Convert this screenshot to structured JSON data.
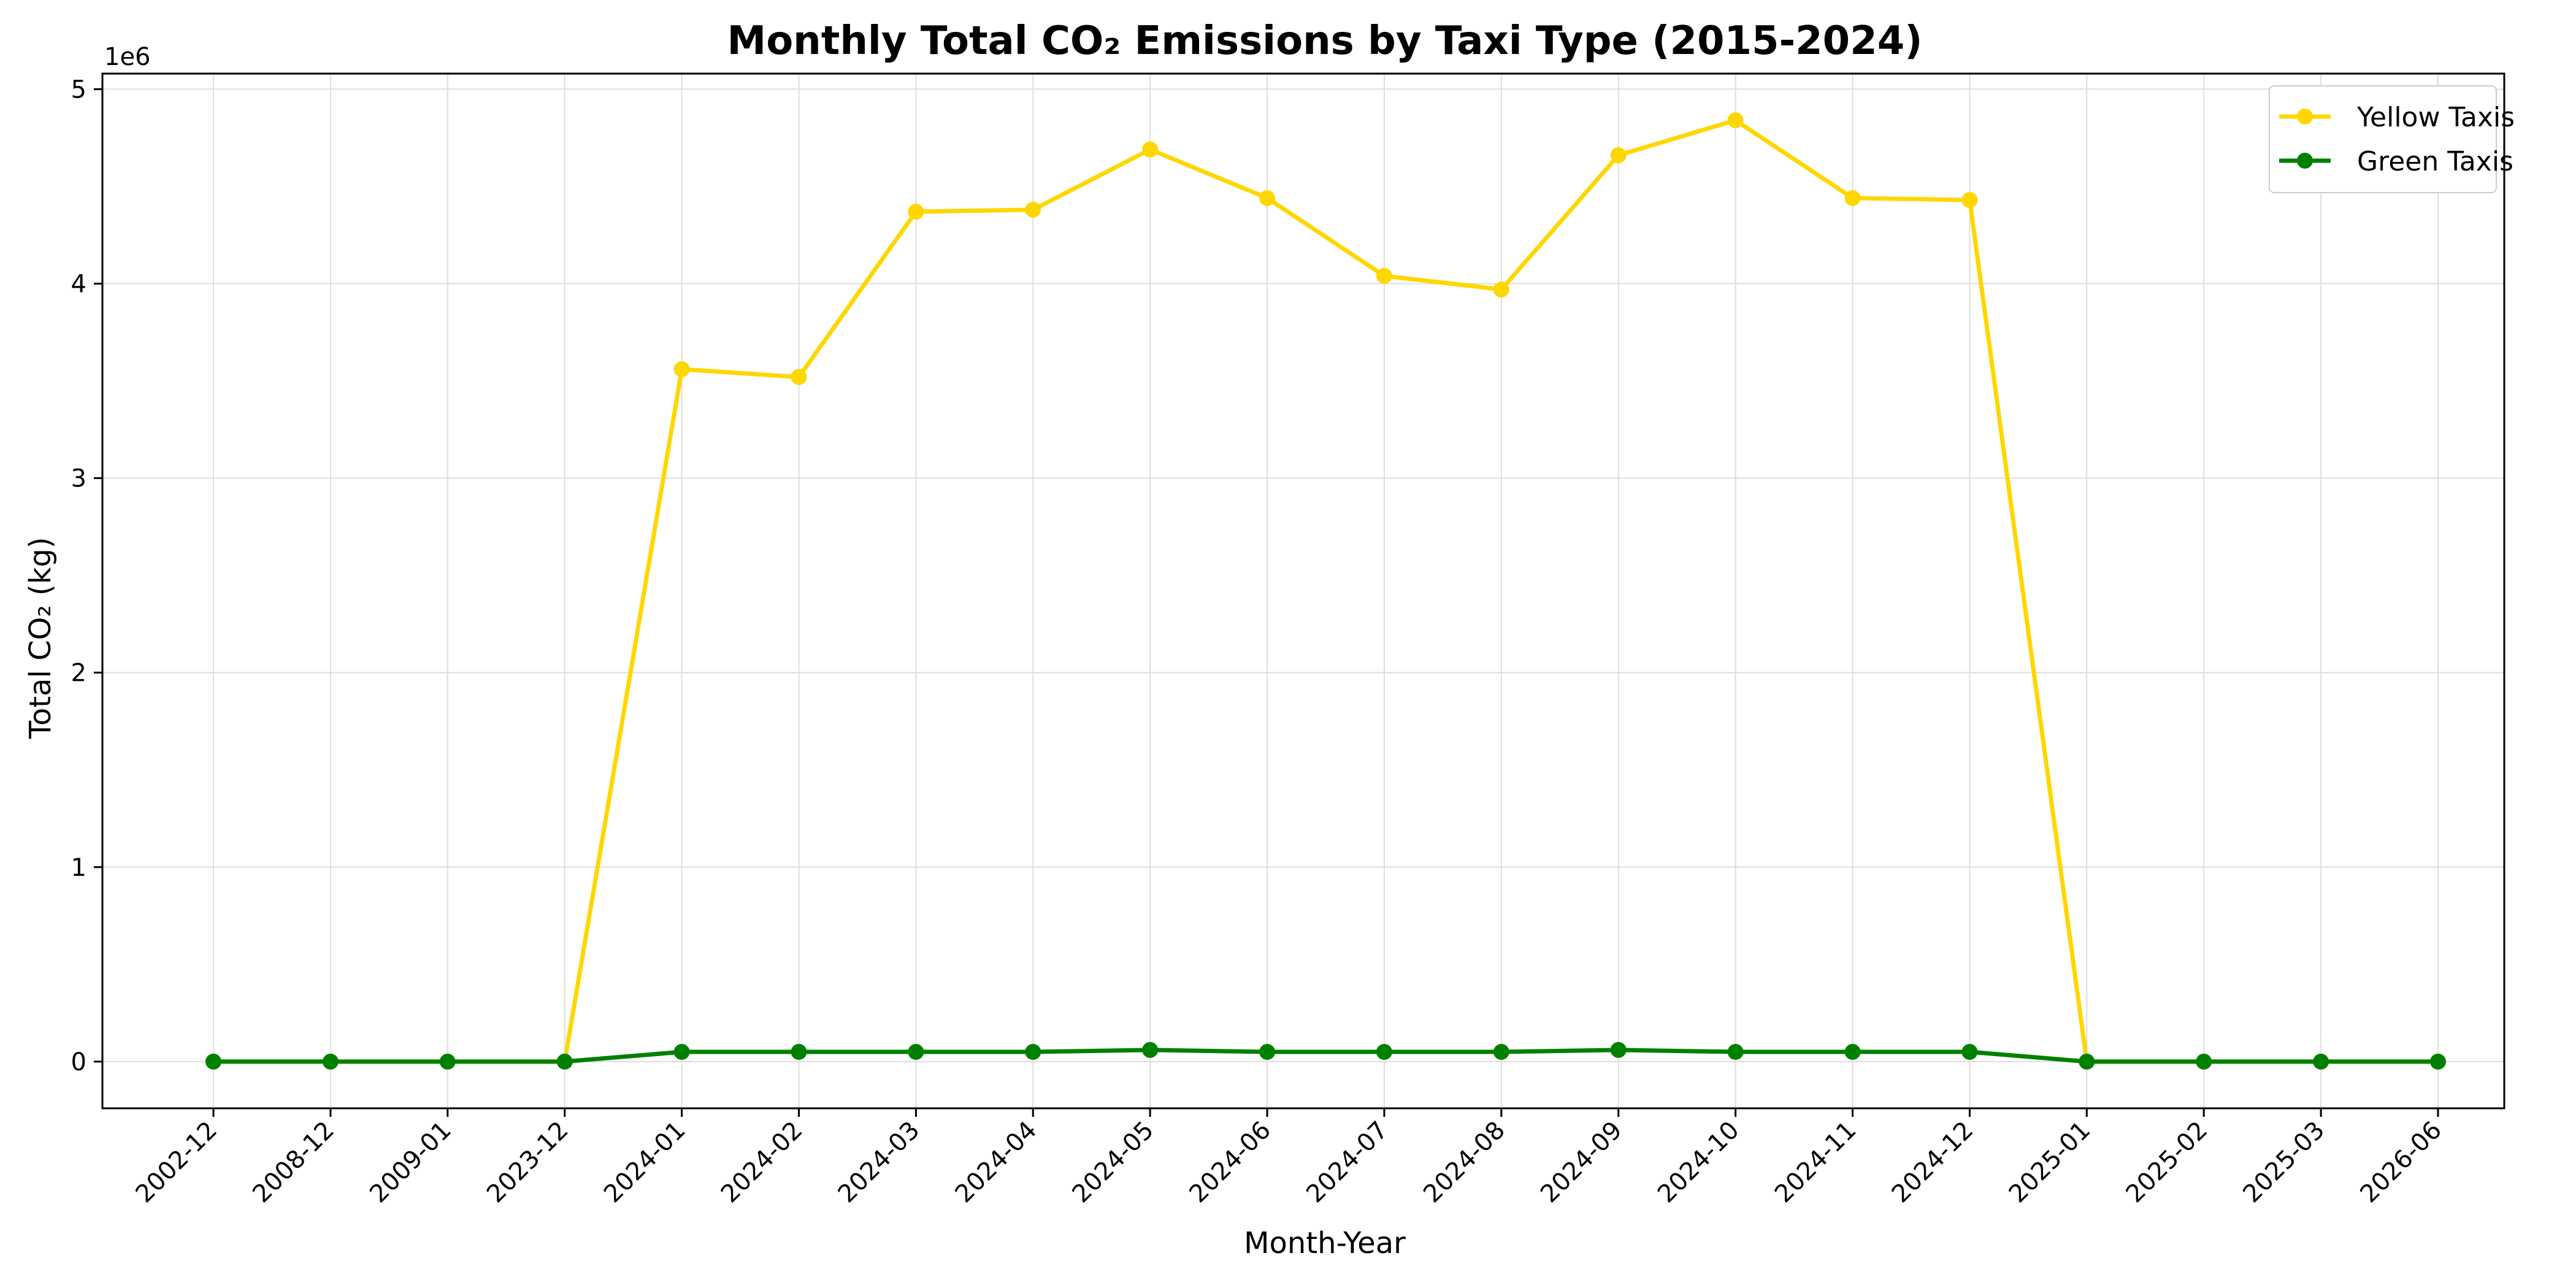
{
  "chart_data": {
    "type": "line",
    "title": "Monthly Total CO₂ Emissions by Taxi Type (2015-2024)",
    "xlabel": "Month-Year",
    "ylabel": "Total CO₂ (kg)",
    "y_multiplier_label": "1e6",
    "categories": [
      "2002-12",
      "2008-12",
      "2009-01",
      "2023-12",
      "2024-01",
      "2024-02",
      "2024-03",
      "2024-04",
      "2024-05",
      "2024-06",
      "2024-07",
      "2024-08",
      "2024-09",
      "2024-10",
      "2024-11",
      "2024-12",
      "2025-01",
      "2025-02",
      "2025-03",
      "2026-06"
    ],
    "yticks": [
      0,
      1,
      2,
      3,
      4,
      5
    ],
    "ylim": [
      -0.24,
      5.08
    ],
    "grid": true,
    "legend_position": "top-right",
    "series": [
      {
        "name": "Yellow Taxis",
        "color": "#FFD700",
        "values": [
          0,
          0,
          0,
          0,
          3.56,
          3.52,
          4.37,
          4.38,
          4.69,
          4.44,
          4.04,
          3.97,
          4.66,
          4.84,
          4.44,
          4.43,
          0,
          0,
          0,
          0
        ]
      },
      {
        "name": "Green Taxis",
        "color": "#008000",
        "values": [
          0,
          0,
          0,
          0,
          0.05,
          0.05,
          0.05,
          0.05,
          0.06,
          0.05,
          0.05,
          0.05,
          0.06,
          0.05,
          0.05,
          0.05,
          0,
          0,
          0,
          0
        ]
      }
    ]
  }
}
